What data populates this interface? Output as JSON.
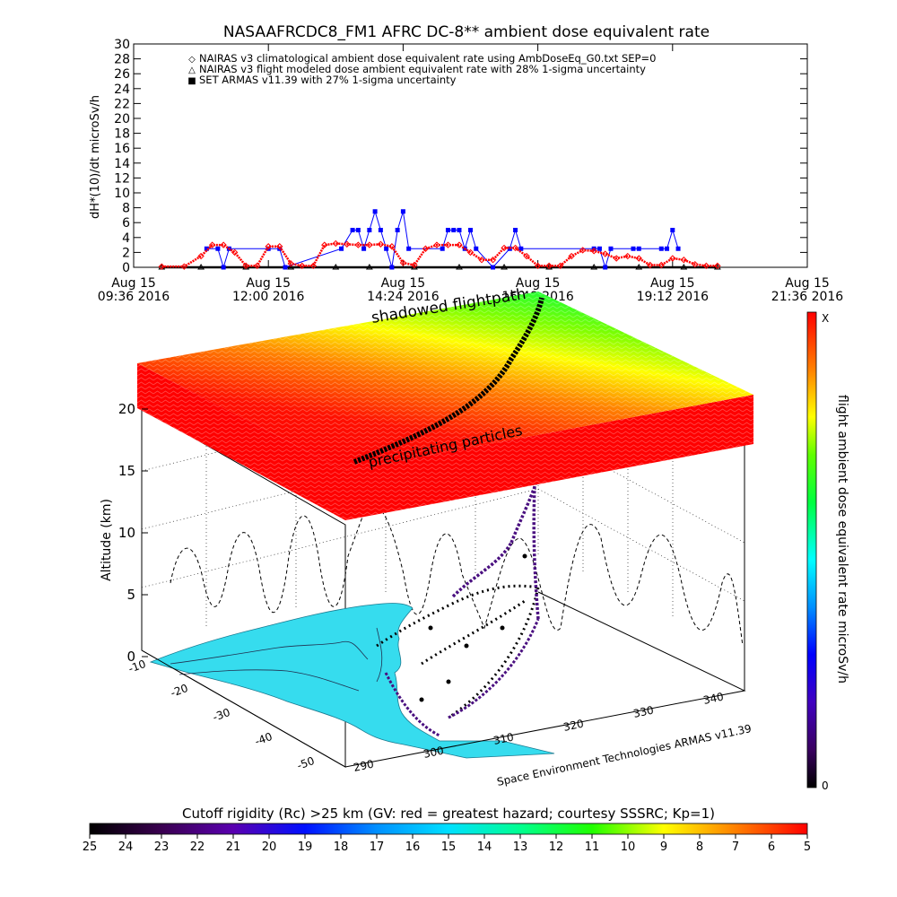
{
  "chart_data": [
    {
      "type": "scatter",
      "title": "NASAAFRCDC8_FM1 AFRC DC-8** ambient dose equivalent rate",
      "ylabel": "dH*(10)/dt microSv/h",
      "ylim": [
        0,
        30
      ],
      "y_ticks": [
        0,
        2,
        4,
        6,
        8,
        10,
        12,
        14,
        16,
        18,
        20,
        22,
        24,
        26,
        28,
        30
      ],
      "x_ticks": [
        {
          "line1": "Aug 15",
          "line2": "09:36 2016"
        },
        {
          "line1": "Aug 15",
          "line2": "12:00 2016"
        },
        {
          "line1": "Aug 15",
          "line2": "14:24 2016"
        },
        {
          "line1": "Aug 15",
          "line2": "16:48 2016"
        },
        {
          "line1": "Aug 15",
          "line2": "19:12 2016"
        },
        {
          "line1": "Aug 15",
          "line2": "21:36 2016"
        }
      ],
      "xlim_hours": [
        9.6,
        21.6
      ],
      "legend": [
        {
          "symbol": "◇",
          "text": "NAIRAS v3 climatological ambient dose equivalent rate using AmbDoseEq_G0.txt SEP=0",
          "color": "#ff0000"
        },
        {
          "symbol": "△",
          "text": "NAIRAS v3 flight modeled dose ambient equivalent rate with 28% 1-sigma uncertainty",
          "color": "#000000"
        },
        {
          "symbol": "■",
          "text": "SET ARMAS v11.39 with 27% 1-sigma uncertainty",
          "color": "#0000ff"
        }
      ],
      "legend_position": "top-left",
      "series": [
        {
          "name": "NAIRAS v3 climatological ambient dose equivalent rate using AmbDoseEq_G0.txt SEP=0",
          "color": "#ff0000",
          "x": [
            10.1,
            10.5,
            10.8,
            11.0,
            11.2,
            11.4,
            11.6,
            11.8,
            12.0,
            12.2,
            12.4,
            12.6,
            12.8,
            13.0,
            13.2,
            13.4,
            13.6,
            13.8,
            14.0,
            14.2,
            14.4,
            14.6,
            14.8,
            15.0,
            15.2,
            15.4,
            15.6,
            15.8,
            16.0,
            16.2,
            16.4,
            16.6,
            16.8,
            17.0,
            17.2,
            17.4,
            17.6,
            17.8,
            18.0,
            18.2,
            18.4,
            18.6,
            18.8,
            19.0,
            19.2,
            19.4,
            19.6,
            19.8,
            20.0
          ],
          "y": [
            0.1,
            0.1,
            1.5,
            3.0,
            3.0,
            2.0,
            0.2,
            0.2,
            2.8,
            2.8,
            0.5,
            0.2,
            0.2,
            3.0,
            3.2,
            3.1,
            3.0,
            3.0,
            3.1,
            2.8,
            0.6,
            0.3,
            2.5,
            3.0,
            3.0,
            3.0,
            2.0,
            1.0,
            1.0,
            2.6,
            2.6,
            1.5,
            0.2,
            0.2,
            0.2,
            1.5,
            2.3,
            2.2,
            1.8,
            1.2,
            1.5,
            1.2,
            0.3,
            0.3,
            1.2,
            1.0,
            0.4,
            0.2,
            0.2
          ]
        },
        {
          "name": "NAIRAS v3 flight modeled dose ambient equivalent rate with 28% 1-sigma uncertainty",
          "color": "#000000",
          "x": [
            10.1,
            10.8,
            11.6,
            12.4,
            13.2,
            13.8,
            14.6,
            15.4,
            16.2,
            17.0,
            17.8,
            18.6,
            19.4,
            20.0
          ],
          "y": [
            0.0,
            0.0,
            0.0,
            0.0,
            0.0,
            0.0,
            0.0,
            0.0,
            0.0,
            0.0,
            0.0,
            0.0,
            0.0,
            0.0
          ]
        },
        {
          "name": "SET ARMAS v11.39 with 27% 1-sigma uncertainty",
          "color": "#0000ff",
          "x": [
            10.9,
            11.1,
            11.2,
            11.3,
            12.0,
            12.2,
            12.3,
            13.3,
            13.5,
            13.6,
            13.7,
            13.8,
            13.9,
            14.0,
            14.1,
            14.2,
            14.3,
            14.4,
            14.5,
            15.1,
            15.2,
            15.3,
            15.4,
            15.5,
            15.6,
            15.7,
            16.0,
            16.3,
            16.4,
            16.5,
            17.8,
            17.9,
            18.0,
            18.1,
            18.5,
            18.6,
            19.0,
            19.1,
            19.2,
            19.3
          ],
          "y": [
            2.5,
            2.5,
            0.0,
            2.5,
            2.5,
            2.5,
            0.0,
            2.5,
            5.0,
            5.0,
            2.5,
            5.0,
            7.5,
            5.0,
            2.5,
            0.0,
            5.0,
            7.5,
            2.5,
            2.5,
            5.0,
            5.0,
            5.0,
            2.5,
            5.0,
            2.5,
            0.0,
            2.5,
            5.0,
            2.5,
            2.5,
            2.5,
            0.0,
            2.5,
            2.5,
            2.5,
            2.5,
            2.5,
            5.0,
            2.5
          ]
        }
      ]
    },
    {
      "type": "heatmap",
      "zlabel": "Altitude (km)",
      "z_ticks": [
        0,
        5,
        10,
        15,
        20
      ],
      "lat_ticks": [
        -10,
        -20,
        -30,
        -40,
        -50
      ],
      "lon_ticks": [
        290,
        300,
        310,
        320,
        330,
        340
      ],
      "annotations": [
        "shadowed flightpath",
        "precipitating particles",
        "Space Environment Technologies ARMAS v11.39"
      ],
      "colorbar_label": "flight ambient dose equivalent rate microSv/h",
      "colorbar_top_label": "X",
      "colorbar_bottom_label": "0"
    }
  ],
  "cutoff_bar": {
    "label": "Cutoff rigidity (Rc) >25 km (GV: red = greatest hazard; courtesy SSSRC; Kp=1)",
    "ticks": [
      25,
      24,
      23,
      22,
      21,
      20,
      19,
      18,
      17,
      16,
      15,
      14,
      13,
      12,
      11,
      10,
      9,
      8,
      7,
      6,
      5
    ]
  },
  "colors": {
    "rainbow": [
      "#000000",
      "#2a0033",
      "#5a007a",
      "#4000b0",
      "#0000ff",
      "#0060ff",
      "#00c0ff",
      "#00ffff",
      "#00ffb0",
      "#00ff40",
      "#40ff00",
      "#a0ff00",
      "#ffff00",
      "#ffc000",
      "#ff8000",
      "#ff4000",
      "#ff0000"
    ],
    "ground": "#33ddee"
  }
}
